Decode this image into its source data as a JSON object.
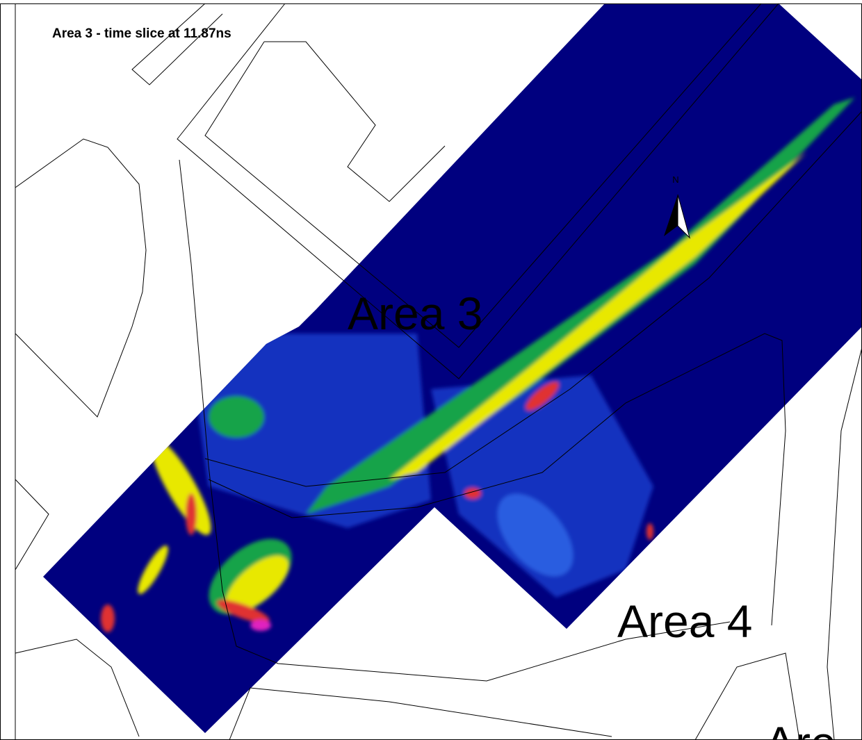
{
  "title": "Area 3 - time slice at 11.87ns",
  "north_label": "N",
  "labels": [
    "Area 3",
    "Area 4",
    "Are"
  ]
}
